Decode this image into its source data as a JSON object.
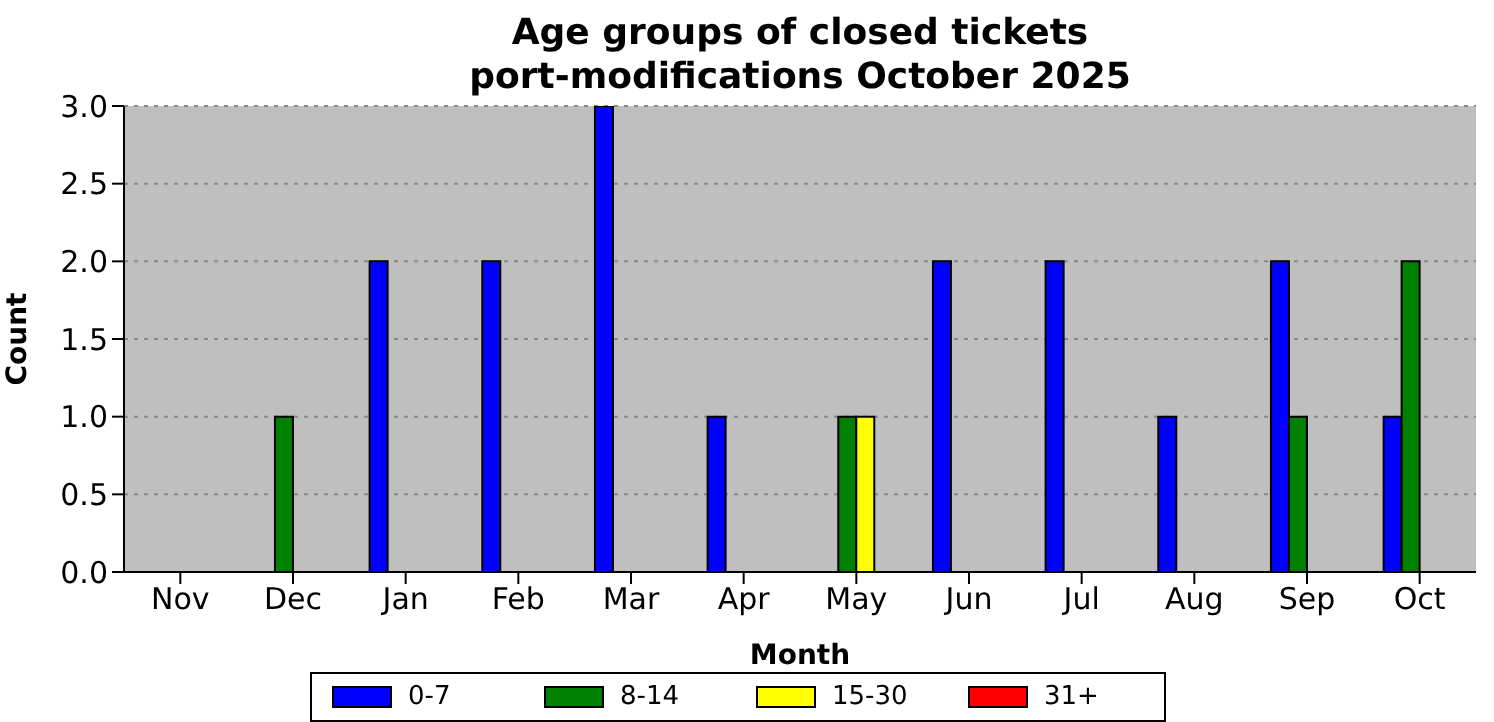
{
  "chart_data": {
    "type": "bar",
    "title": "Age groups of closed tickets\nport-modifications October 2025",
    "xlabel": "Month",
    "ylabel": "Count",
    "categories": [
      "Nov",
      "Dec",
      "Jan",
      "Feb",
      "Mar",
      "Apr",
      "May",
      "Jun",
      "Jul",
      "Aug",
      "Sep",
      "Oct"
    ],
    "series": [
      {
        "name": "0-7",
        "color": "#0000ff",
        "values": [
          0,
          0,
          2,
          2,
          3,
          1,
          0,
          2,
          2,
          1,
          2,
          1
        ]
      },
      {
        "name": "8-14",
        "color": "#008000",
        "values": [
          0,
          1,
          0,
          0,
          0,
          0,
          1,
          0,
          0,
          0,
          1,
          2
        ]
      },
      {
        "name": "15-30",
        "color": "#ffff00",
        "values": [
          0,
          0,
          0,
          0,
          0,
          0,
          1,
          0,
          0,
          0,
          0,
          0
        ]
      },
      {
        "name": "31+",
        "color": "#ff0000",
        "values": [
          0,
          0,
          0,
          0,
          0,
          0,
          0,
          0,
          0,
          0,
          0,
          0
        ]
      }
    ],
    "ylim": [
      0,
      3
    ],
    "yticks": [
      {
        "value": 0,
        "label": "0.0"
      },
      {
        "value": 0.5,
        "label": "0.5"
      },
      {
        "value": 1,
        "label": "1.0"
      },
      {
        "value": 1.5,
        "label": "1.5"
      },
      {
        "value": 2,
        "label": "2.0"
      },
      {
        "value": 2.5,
        "label": "2.5"
      },
      {
        "value": 3,
        "label": "3.0"
      }
    ],
    "grid": "y",
    "legend": "bottom"
  }
}
